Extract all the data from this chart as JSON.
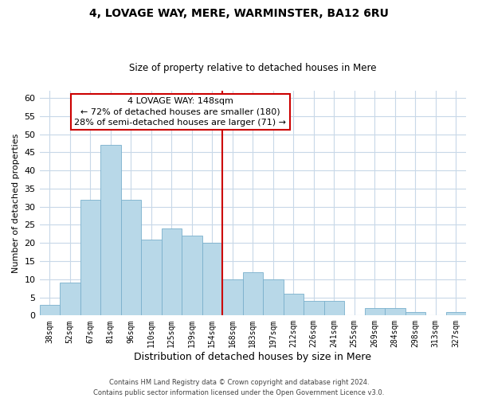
{
  "title": "4, LOVAGE WAY, MERE, WARMINSTER, BA12 6RU",
  "subtitle": "Size of property relative to detached houses in Mere",
  "xlabel": "Distribution of detached houses by size in Mere",
  "ylabel": "Number of detached properties",
  "bar_labels": [
    "38sqm",
    "52sqm",
    "67sqm",
    "81sqm",
    "96sqm",
    "110sqm",
    "125sqm",
    "139sqm",
    "154sqm",
    "168sqm",
    "183sqm",
    "197sqm",
    "212sqm",
    "226sqm",
    "241sqm",
    "255sqm",
    "269sqm",
    "284sqm",
    "298sqm",
    "313sqm",
    "327sqm"
  ],
  "bar_values": [
    3,
    9,
    32,
    47,
    32,
    21,
    24,
    22,
    20,
    10,
    12,
    10,
    6,
    4,
    4,
    0,
    2,
    2,
    1,
    0,
    1
  ],
  "bar_color": "#b8d8e8",
  "bar_edge_color": "#7ab0cc",
  "vline_color": "#cc0000",
  "vline_position": 8.5,
  "ylim": [
    0,
    62
  ],
  "yticks": [
    0,
    5,
    10,
    15,
    20,
    25,
    30,
    35,
    40,
    45,
    50,
    55,
    60
  ],
  "annotation_title": "4 LOVAGE WAY: 148sqm",
  "annotation_line1": "← 72% of detached houses are smaller (180)",
  "annotation_line2": "28% of semi-detached houses are larger (71) →",
  "annotation_box_color": "#ffffff",
  "annotation_box_edge": "#cc0000",
  "footer_line1": "Contains HM Land Registry data © Crown copyright and database right 2024.",
  "footer_line2": "Contains public sector information licensed under the Open Government Licence v3.0.",
  "bg_color": "#ffffff",
  "grid_color": "#c8d8e8",
  "title_fontsize": 10,
  "subtitle_fontsize": 8.5,
  "xlabel_fontsize": 9,
  "ylabel_fontsize": 8
}
